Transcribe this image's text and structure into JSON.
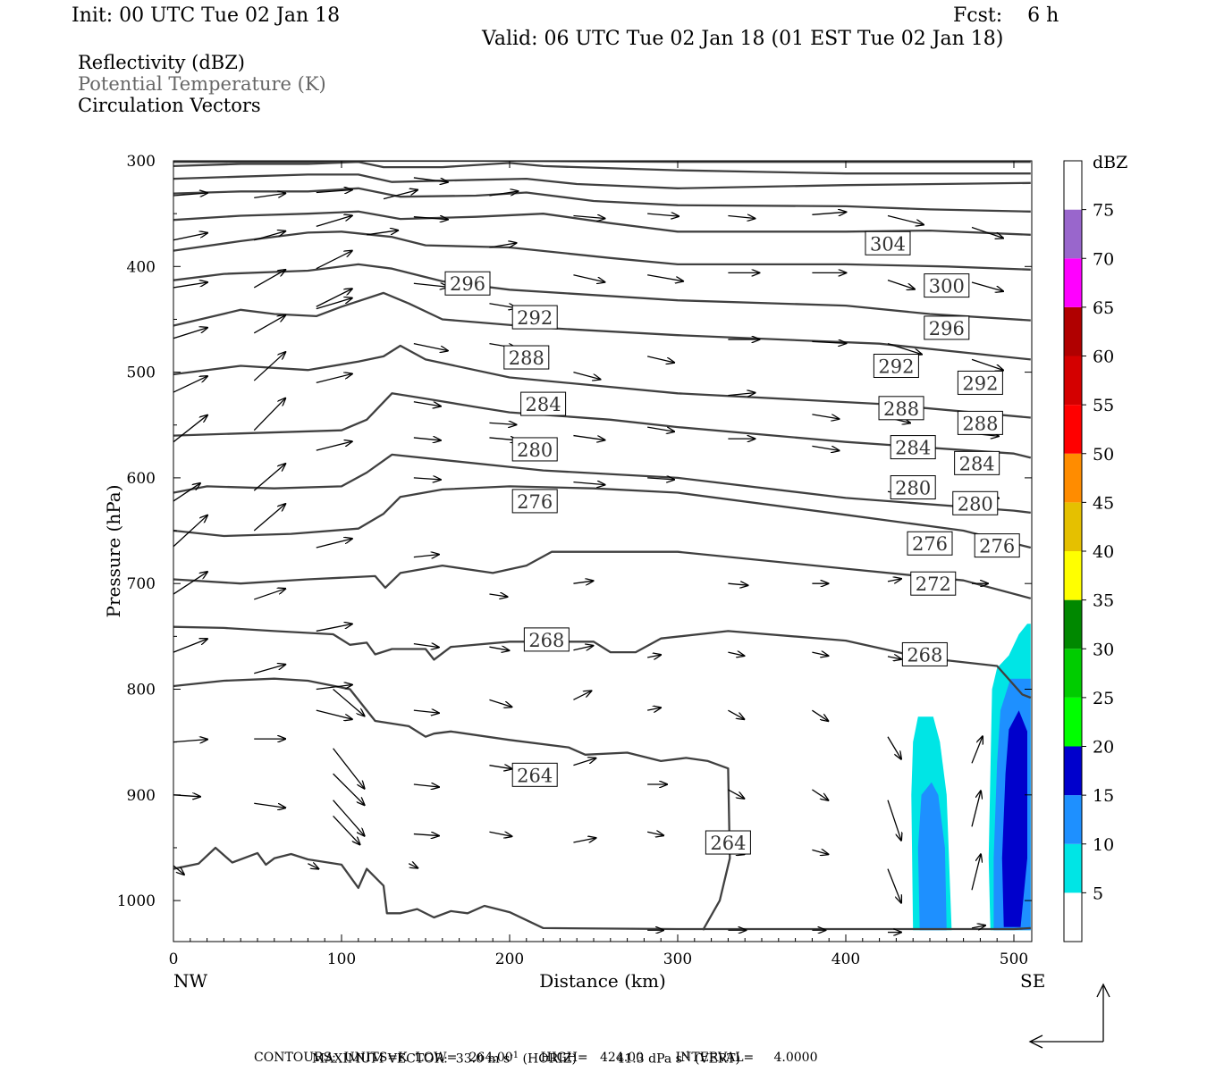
{
  "header": {
    "init": "Init: 00 UTC Tue 02 Jan 18",
    "fcst": "Fcst:    6 h",
    "valid": "Valid: 06 UTC Tue 02 Jan 18 (01 EST Tue 02 Jan 18)"
  },
  "legend": {
    "reflectivity": "Reflectivity (dBZ)",
    "theta": "Potential Temperature (K)",
    "vectors": "Circulation Vectors"
  },
  "footer": {
    "max_vector_label": "MAXIMUM VECTOR:",
    "max_horiz": "33.0 m s",
    "horiz_tag": "(HORIZ)",
    "max_vert": "41.3 dPa s",
    "vert_tag": "(VERT)",
    "sup": "-1",
    "contours": "CONTOURS:  UNITS=K  LOW=   264.00       HIGH=   424.00        INTERVAL=     4.0000"
  },
  "chart_data": {
    "type": "heatmap",
    "title": "Reflectivity (dBZ) / Potential Temperature (K) / Circulation Vectors",
    "xlabel": "Distance (km)",
    "ylabel": "Pressure (hPa)",
    "xlim": [
      0,
      510
    ],
    "ylim": [
      1030,
      300
    ],
    "x_ticks": [
      0,
      100,
      200,
      300,
      400,
      500
    ],
    "y_ticks": [
      300,
      400,
      500,
      600,
      700,
      800,
      900,
      1000
    ],
    "x_end_labels": {
      "left": "NW",
      "right": "SE"
    },
    "colorbar": {
      "label": "dBZ",
      "levels": [
        5,
        10,
        15,
        20,
        25,
        30,
        35,
        40,
        45,
        50,
        55,
        60,
        65,
        70,
        75
      ],
      "colors": [
        "#ffffff",
        "#00e5e5",
        "#1e90ff",
        "#0000cc",
        "#00ff00",
        "#00cc00",
        "#008800",
        "#ffff00",
        "#e5c000",
        "#ff8c00",
        "#ff0000",
        "#d40000",
        "#b00000",
        "#ff00ff",
        "#9966cc",
        "#ffffff"
      ]
    },
    "theta_contours": {
      "units": "K",
      "low": 264,
      "high": 424,
      "interval": 4,
      "labels": [
        {
          "value": 304,
          "x": 425,
          "p": 378
        },
        {
          "value": 300,
          "x": 460,
          "p": 418
        },
        {
          "value": 296,
          "x": 175,
          "p": 416
        },
        {
          "value": 296,
          "x": 460,
          "p": 458
        },
        {
          "value": 292,
          "x": 215,
          "p": 448
        },
        {
          "value": 292,
          "x": 430,
          "p": 494
        },
        {
          "value": 292,
          "x": 480,
          "p": 510
        },
        {
          "value": 288,
          "x": 210,
          "p": 486
        },
        {
          "value": 288,
          "x": 433,
          "p": 534
        },
        {
          "value": 288,
          "x": 480,
          "p": 548
        },
        {
          "value": 284,
          "x": 220,
          "p": 530
        },
        {
          "value": 284,
          "x": 440,
          "p": 571
        },
        {
          "value": 284,
          "x": 478,
          "p": 586
        },
        {
          "value": 280,
          "x": 215,
          "p": 573
        },
        {
          "value": 280,
          "x": 440,
          "p": 609
        },
        {
          "value": 280,
          "x": 477,
          "p": 624
        },
        {
          "value": 276,
          "x": 215,
          "p": 622
        },
        {
          "value": 276,
          "x": 450,
          "p": 662
        },
        {
          "value": 276,
          "x": 490,
          "p": 664
        },
        {
          "value": 272,
          "x": 452,
          "p": 700
        },
        {
          "value": 268,
          "x": 222,
          "p": 753
        },
        {
          "value": 268,
          "x": 447,
          "p": 767
        },
        {
          "value": 264,
          "x": 215,
          "p": 881
        },
        {
          "value": 264,
          "x": 330,
          "p": 945
        }
      ]
    },
    "reflectivity_cells": [
      {
        "x_range": [
          440,
          463
        ],
        "p_range": [
          1025,
          825
        ],
        "max_dbz": 10
      },
      {
        "x_range": [
          485,
          510
        ],
        "p_range": [
          1025,
          740
        ],
        "max_dbz": 15
      }
    ],
    "max_vector": {
      "horiz": "33.0 m s-1",
      "vert": "41.3 dPa s-1"
    }
  }
}
